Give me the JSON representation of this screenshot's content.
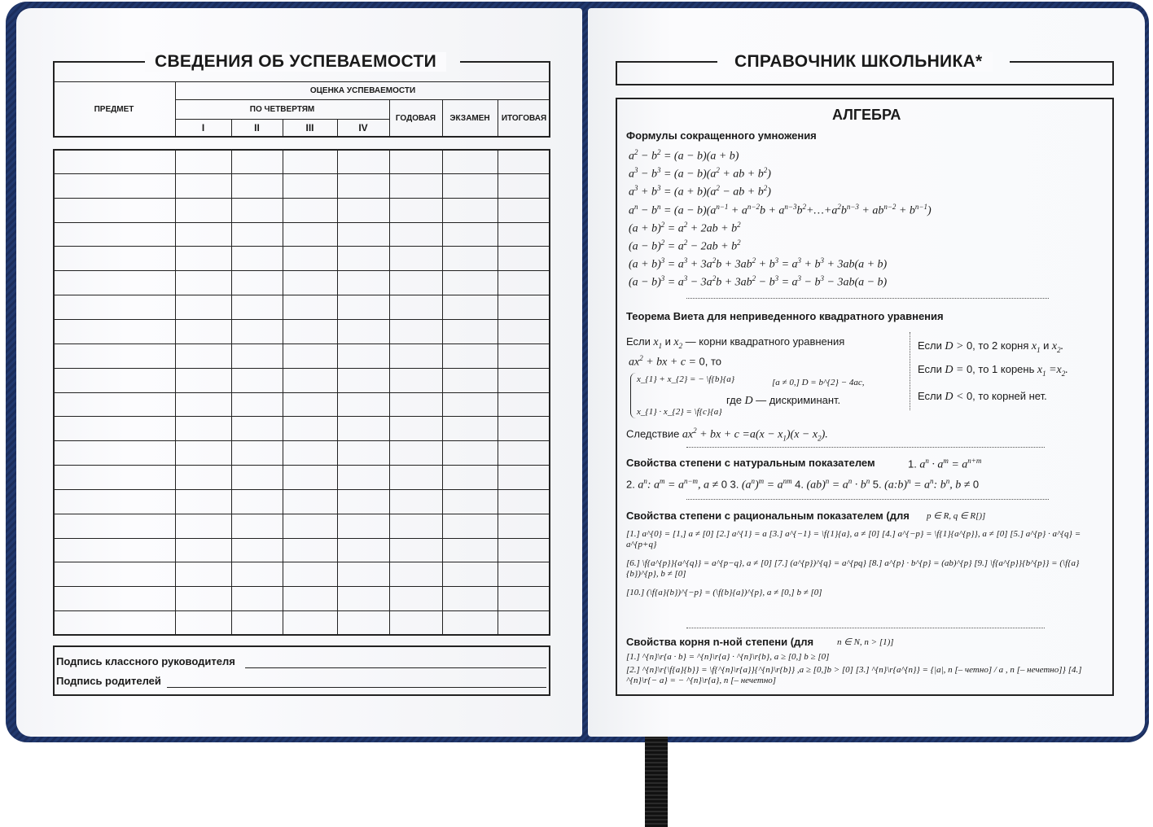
{
  "left": {
    "title": "СВЕДЕНИЯ ОБ УСПЕВАЕМОСТИ",
    "subject_header": "ПРЕДМЕТ",
    "grades_header": "ОЦЕНКА УСПЕВАЕМОСТИ",
    "quarters_header": "ПО ЧЕТВЕРТЯМ",
    "quarters": [
      "I",
      "II",
      "III",
      "IV"
    ],
    "yearly": "ГОДОВАЯ",
    "exam": "ЭКЗАМЕН",
    "final": "ИТОГОВАЯ",
    "signature_teacher": "Подпись классного руководителя",
    "signature_parents": "Подпись родителей"
  },
  "right": {
    "title": "СПРАВОЧНИК ШКОЛЬНИКА*",
    "section": "АЛГЕБРА",
    "abbr_title": "Формулы сокращенного умножения",
    "abbr": [
      "a^{2} − b^{2} = (a − b)(a + b)",
      "a^{3} − b^{3} = (a − b)(a^{2} + ab + b^{2})",
      "a^{3} + b^{3} = (a + b)(a^{2} − ab + b^{2})",
      "a^{n} − b^{n} = (a − b)(a^{n−1} + a^{n−2}b + a^{n−3}b^{2}+…+a^{2}b^{n−3} + ab^{n−2} + b^{n−1})",
      "(a + b)^{2} = a^{2} + 2ab + b^{2}",
      "(a − b)^{2} = a^{2} − 2ab + b^{2}",
      "(a + b)^{3} = a^{3} + 3a^{2}b + 3ab^{2} + b^{3} = a^{3} + b^{3} + 3ab(a + b)",
      "(a − b)^{3} = a^{3} − 3a^{2}b + 3ab^{2} − b^{3} = a^{3} − b^{3} − 3ab(a − b)"
    ],
    "vieta_title": "Теорема Виета для неприведенного квадратного уравнения",
    "vieta": {
      "l1": "[Если]  x_{1} [и] x_{2} [— корни квадратного уравнения]",
      "l2": "ax^{2} + bx + c = [0, то]",
      "s1": "x_{1} + x_{2} = − \\f{b}{a}",
      "s2": "x_{1} · x_{2} = \\f{c}{a}",
      "c1": "[a ≠ 0,]  D = b^{2} − 4ac,",
      "c2": "[где] D [— дискриминант.]",
      "r1": "[Если]  D > [0, то 2 корня] x_{1} [и] x_{2}.",
      "r2": "[Если]  D = [0, то 1 корень] x_{1} =x_{2}.",
      "r3": "[Если]  D < [0, то корней нет.]",
      "corollary": "[Следствие]   ax^{2} + bx + c =a(x − x_{1})(x − x_{2})."
    },
    "nat_title": "Свойства степени с натуральным показателем",
    "nat": [
      "[1.] a^{n} · a^{m} = a^{n+m}",
      "[2.] a^{n}: a^{m} = a^{n−m},  a ≠ [0]  [3.] (a^{n})^{m} = a^{nm}   [4.] (ab)^{n} = a^{n} · b^{n}   [5.] (a:b)^{n} = a^{n}: b^{n},  b ≠ [0]"
    ],
    "rat_title": "Свойства степени с рациональным показателем (для",
    "rat_cond": "p ∈ R, q ∈ R[)]",
    "rat": [
      "[1.] a^{0} = [1,]  a ≠ [0]   [2.] a^{1} = a    [3.] a^{−1} = \\f{1}{a},  a ≠ [0]    [4.] a^{−p} = \\f{1}{a^{p}},  a ≠ [0]   [5.] a^{p} · a^{q} = a^{p+q}",
      "[6.] \\f{a^{p}}{a^{q}} = a^{p−q},  a ≠ [0]   [7.]  (a^{p})^{q} = a^{pq}   [8.] a^{p} · b^{p} = (ab)^{p}   [9.] \\f{a^{p}}{b^{p}} = (\\f{a}{b})^{p},   b ≠ [0]",
      "[10.] (\\f{a}{b})^{−p} = (\\f{b}{a})^{p},  a ≠ [0,] b ≠ [0]"
    ],
    "root_title": "Свойства корня n-ной степени (для",
    "root_cond": "n ∈ N, n > [1)]",
    "root": [
      "[1.]  ^{n}\\r{a · b} = ^{n}\\r{a} · ^{n}\\r{b},  a ≥ [0,]  b ≥ [0]",
      "[2.] ^{n}\\r{\\f{a}{b}} = \\f{^{n}\\r{a}}{^{n}\\r{b}} ,a ≥ [0,]b > [0]   [3.] ^{n}\\r{a^{n}} = {|a|, n [– четно] / a , n [– нечетно]}    [4.] ^{n}\\r{− a} = − ^{n}\\r{a}, n [– нечетно]"
    ]
  }
}
